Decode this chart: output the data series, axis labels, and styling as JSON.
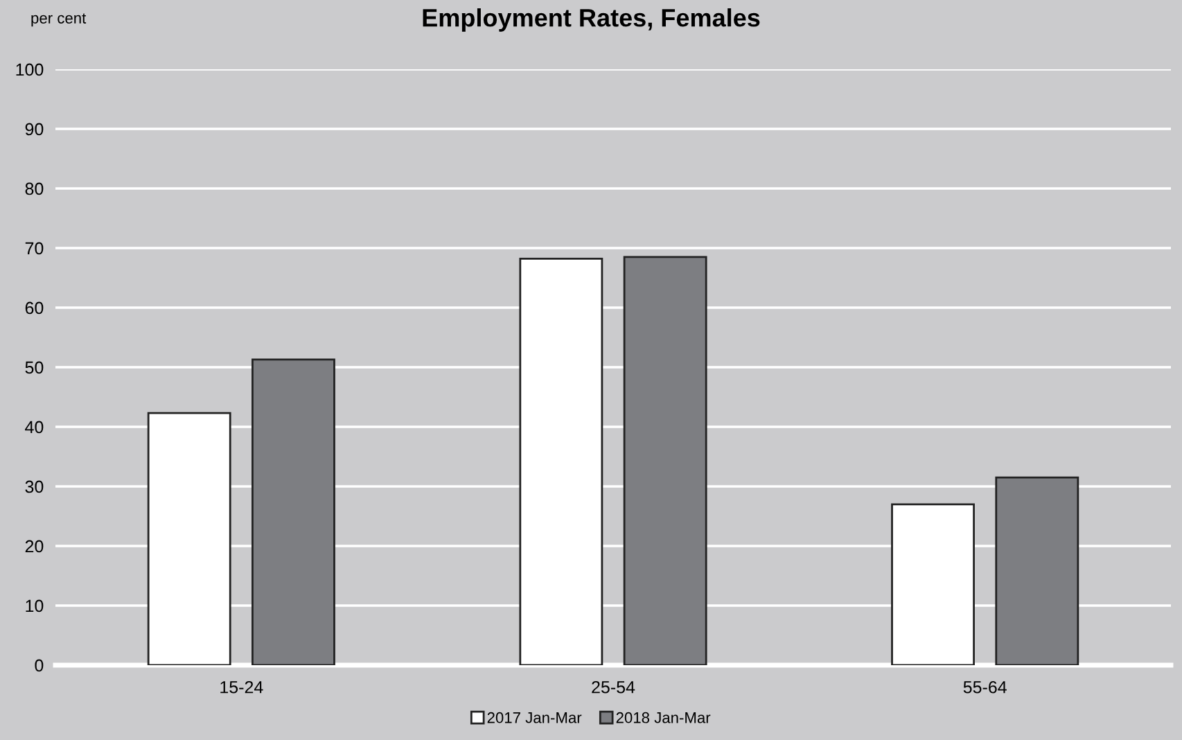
{
  "chart_data": {
    "type": "bar",
    "title": "Employment Rates, Females",
    "ylabel": "per cent",
    "categories": [
      "15-24",
      "25-54",
      "55-64"
    ],
    "series": [
      {
        "name": "2017 Jan-Mar",
        "color": "#ffffff",
        "values": [
          42.3,
          68.2,
          27.0
        ]
      },
      {
        "name": "2018 Jan-Mar",
        "color": "#7d7e82",
        "values": [
          51.3,
          68.5,
          31.5
        ]
      }
    ],
    "ylim": [
      0,
      100
    ],
    "yticks": [
      0,
      10,
      20,
      30,
      40,
      50,
      60,
      70,
      80,
      90,
      100
    ],
    "grid": "y",
    "legend": "bottom"
  }
}
